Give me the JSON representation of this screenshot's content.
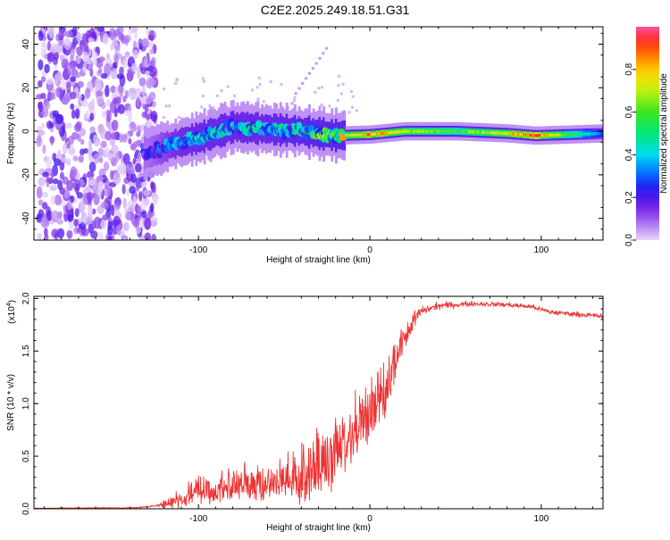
{
  "title": "C2E2.2025.249.18.51.G31",
  "colors": {
    "line": "#ee3333",
    "axis": "#000000"
  },
  "chart_data": [
    {
      "type": "heatmap",
      "name": "spectrogram",
      "xlabel": "Height of straight line (km)",
      "ylabel": "Frequency (Hz)",
      "xlim": [
        -196,
        136
      ],
      "ylim": [
        -50,
        48
      ],
      "xticks": [
        -100,
        0,
        100
      ],
      "yticks": [
        -40,
        -20,
        0,
        20,
        40
      ],
      "colorbar": {
        "label": "Normalized spectral amplitude",
        "range": [
          0.0,
          1.0
        ],
        "ticks": [
          "0.0",
          "0.2",
          "0.4",
          "0.6",
          "0.8"
        ],
        "tick_values": [
          0.0,
          0.2,
          0.4,
          0.6,
          0.8
        ]
      },
      "features": {
        "noise_region_km": [
          -196,
          -128
        ],
        "trace_points": [
          {
            "km": -130,
            "hz": -10,
            "amp": 0.2
          },
          {
            "km": -115,
            "hz": -6,
            "amp": 0.35
          },
          {
            "km": -100,
            "hz": -3,
            "amp": 0.4
          },
          {
            "km": -80,
            "hz": 2,
            "amp": 0.4
          },
          {
            "km": -60,
            "hz": 1,
            "amp": 0.4
          },
          {
            "km": -40,
            "hz": 0,
            "amp": 0.45
          },
          {
            "km": -20,
            "hz": -2,
            "amp": 0.6
          },
          {
            "km": 0,
            "hz": -1.5,
            "amp": 0.9
          },
          {
            "km": 20,
            "hz": 0,
            "amp": 0.75
          },
          {
            "km": 50,
            "hz": 0,
            "amp": 0.6
          },
          {
            "km": 80,
            "hz": -1,
            "amp": 0.8
          },
          {
            "km": 96,
            "hz": -2,
            "amp": 0.95
          },
          {
            "km": 136,
            "hz": -1,
            "amp": 0.3
          }
        ]
      }
    },
    {
      "type": "line",
      "name": "snr",
      "xlabel": "Height of straight line (km)",
      "ylabel": "SNR (10 * v/v)",
      "y_multiplier": "(x10",
      "y_multiplier_exp": "4",
      "y_multiplier_close": ")",
      "xlim": [
        -196,
        136
      ],
      "ylim": [
        0,
        2.02
      ],
      "xticks": [
        -100,
        0,
        100
      ],
      "yticks": [
        "0.0",
        "0.5",
        "1.0",
        "1.5",
        "2.0"
      ],
      "ytick_values": [
        0,
        0.5,
        1.0,
        1.5,
        2.0
      ],
      "envelope": [
        {
          "km": -196,
          "snr": 0.005
        },
        {
          "km": -135,
          "snr": 0.01
        },
        {
          "km": -125,
          "snr": 0.03
        },
        {
          "km": -115,
          "snr": 0.12
        },
        {
          "km": -105,
          "snr": 0.25
        },
        {
          "km": -90,
          "snr": 0.3
        },
        {
          "km": -80,
          "snr": 0.35
        },
        {
          "km": -60,
          "snr": 0.38
        },
        {
          "km": -45,
          "snr": 0.45
        },
        {
          "km": -30,
          "snr": 0.62
        },
        {
          "km": -20,
          "snr": 0.8
        },
        {
          "km": -10,
          "snr": 1.05
        },
        {
          "km": 0,
          "snr": 1.15
        },
        {
          "km": 10,
          "snr": 1.35
        },
        {
          "km": 20,
          "snr": 1.7
        },
        {
          "km": 30,
          "snr": 1.88
        },
        {
          "km": 40,
          "snr": 1.93
        },
        {
          "km": 60,
          "snr": 1.95
        },
        {
          "km": 80,
          "snr": 1.94
        },
        {
          "km": 95,
          "snr": 1.92
        },
        {
          "km": 105,
          "snr": 1.87
        },
        {
          "km": 136,
          "snr": 1.83
        }
      ],
      "noise_amplitude": [
        {
          "km": -196,
          "amp": 0.004
        },
        {
          "km": -125,
          "amp": 0.01
        },
        {
          "km": -110,
          "amp": 0.2
        },
        {
          "km": -80,
          "amp": 0.3
        },
        {
          "km": -50,
          "amp": 0.35
        },
        {
          "km": -40,
          "amp": 0.5
        },
        {
          "km": -20,
          "amp": 0.7
        },
        {
          "km": -5,
          "amp": 0.6
        },
        {
          "km": 10,
          "amp": 0.5
        },
        {
          "km": 20,
          "amp": 0.25
        },
        {
          "km": 30,
          "amp": 0.06
        },
        {
          "km": 60,
          "amp": 0.035
        },
        {
          "km": 136,
          "amp": 0.035
        }
      ]
    }
  ]
}
